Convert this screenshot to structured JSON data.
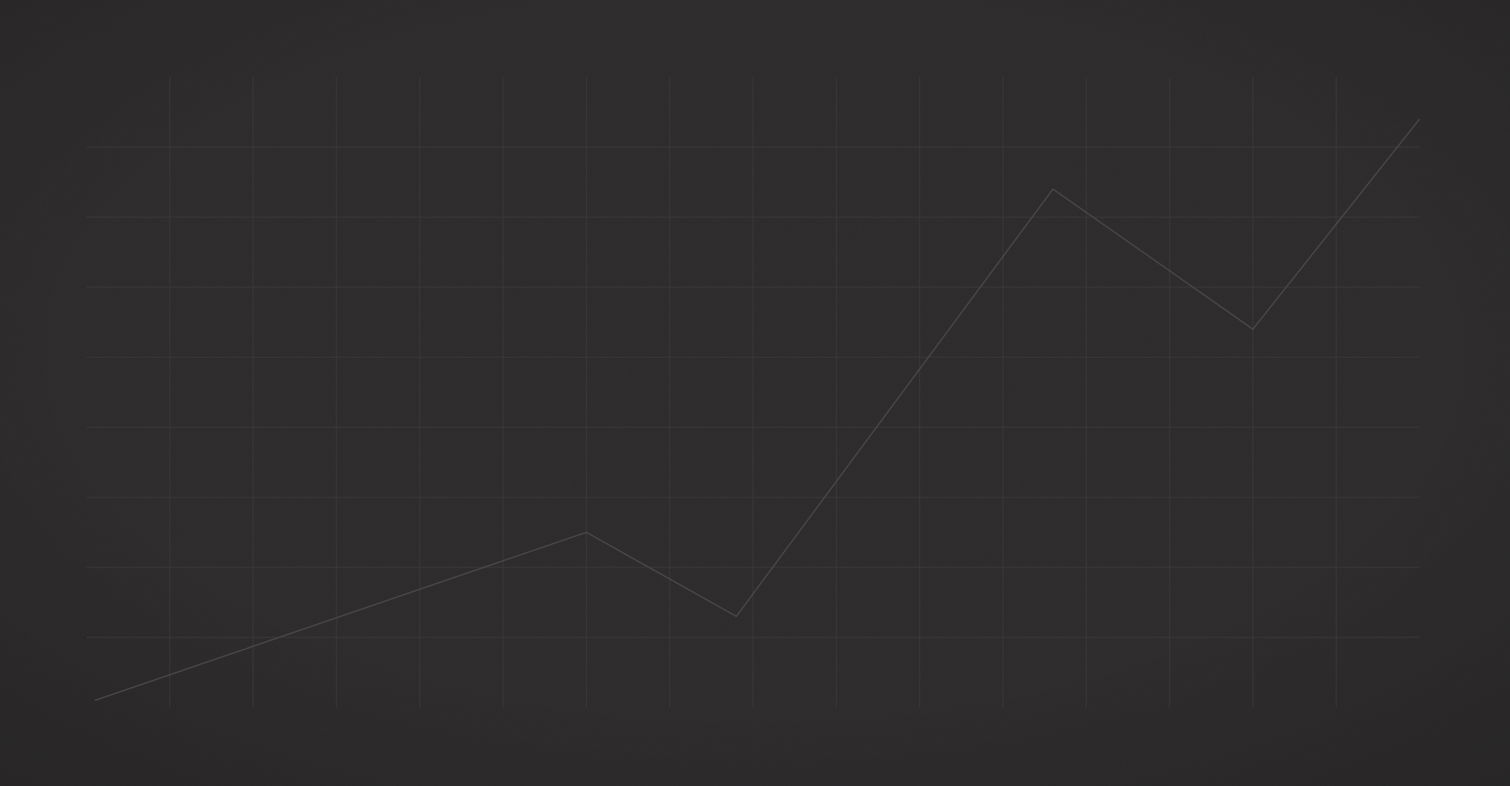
{
  "chart_data": {
    "type": "line",
    "x": [
      0.1,
      6,
      7.8,
      11.6,
      14,
      16
    ],
    "series": [
      {
        "color": "#4b494a",
        "values": [
          0.1,
          2.5,
          1.3,
          7.4,
          5.4,
          8.4
        ]
      }
    ],
    "xlim": [
      0,
      16
    ],
    "xticks": [
      1,
      2,
      3,
      4,
      5,
      6,
      7,
      8,
      9,
      10,
      11,
      12,
      13,
      14,
      15
    ],
    "ylim": [
      0,
      9
    ],
    "yticks": [
      1,
      2,
      3,
      4,
      5,
      6,
      7,
      8
    ],
    "grid": true,
    "grid_color": "#3a3839",
    "background": "#2a2829"
  }
}
